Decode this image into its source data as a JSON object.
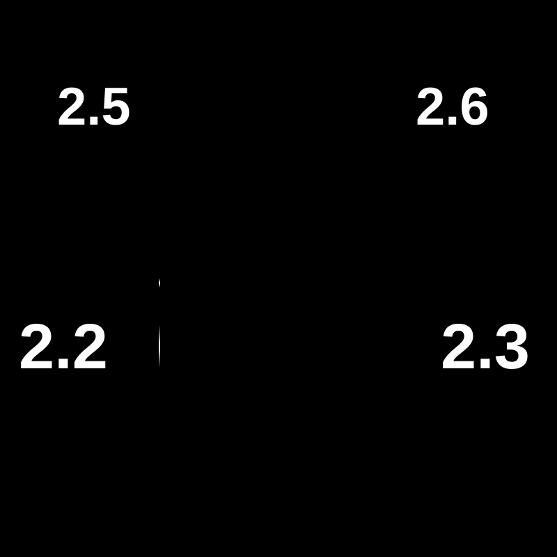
{
  "labels": {
    "top_left": "2.5",
    "top_right": "2.6",
    "bottom_left": "2.2",
    "bottom_right": "2.3"
  },
  "colors": {
    "background": "#000000",
    "text": "#ffffff"
  }
}
